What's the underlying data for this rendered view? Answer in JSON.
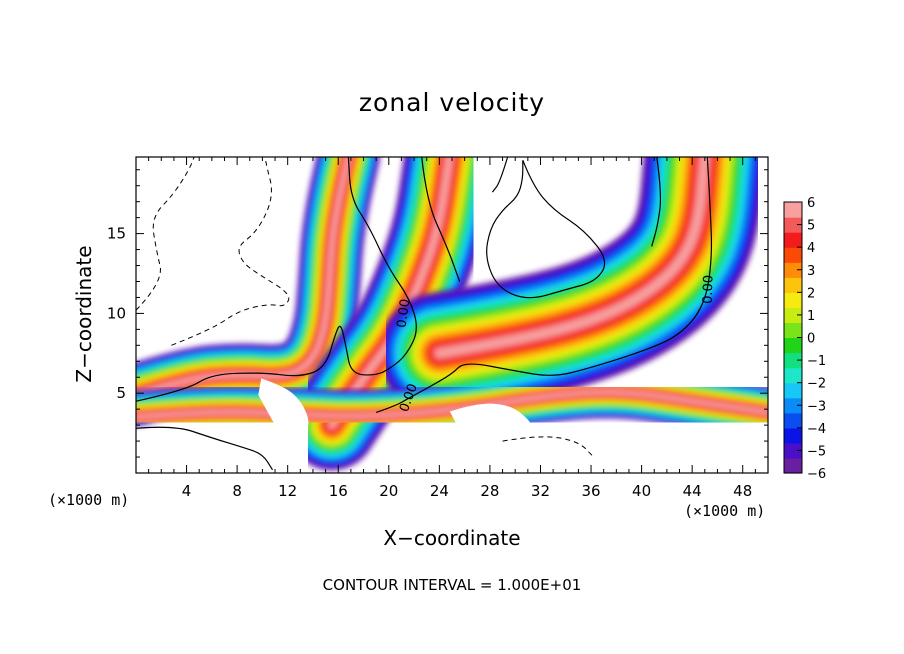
{
  "chart_data": {
    "type": "heatmap",
    "title": "zonal velocity",
    "xlabel": "X−coordinate",
    "ylabel": "Z−coordinate",
    "x_units_left": "(×1000 m)",
    "x_units_right": "(×1000 m)",
    "contour_interval_label": "CONTOUR INTERVAL = 1.000E+01",
    "xlim": [
      0,
      50
    ],
    "ylim": [
      0,
      19.8
    ],
    "x_ticks": [
      4,
      8,
      12,
      16,
      20,
      24,
      28,
      32,
      36,
      40,
      44,
      48
    ],
    "x_tick_labels": [
      "4",
      "8",
      "12",
      "16",
      "20",
      "24",
      "28",
      "32",
      "36",
      "40",
      "44",
      "48"
    ],
    "y_ticks": [
      5,
      10,
      15
    ],
    "y_tick_labels": [
      "5",
      "10",
      "15"
    ],
    "colorbar": {
      "min": -6,
      "max": 6,
      "tick_labels": [
        "6",
        "5",
        "4",
        "3",
        "2",
        "1",
        "0",
        "−1",
        "−2",
        "−3",
        "−4",
        "−5",
        "−6"
      ],
      "colors": [
        "#6a1fa0",
        "#4a10c8",
        "#0a14e6",
        "#0a4ef2",
        "#0a8cf8",
        "#16c8f8",
        "#1ee6c8",
        "#10e080",
        "#20d418",
        "#7ae41a",
        "#c8ec12",
        "#f6ea10",
        "#fcc40c",
        "#fc8c0a",
        "#fb4a08",
        "#f21c1c",
        "#f45a5a",
        "#f8a0a0"
      ]
    },
    "contour_labels": [
      {
        "text": "0.00",
        "x": 21.2,
        "z": 10.0,
        "angle": -82
      },
      {
        "text": "0.00",
        "x": 21.6,
        "z": 4.7,
        "angle": -70
      },
      {
        "text": "0.00",
        "x": 45.3,
        "z": 11.5,
        "angle": -88
      }
    ],
    "bands": [
      {
        "name": "left-jet",
        "points": [
          [
            0,
            4.9
          ],
          [
            4,
            5.9
          ],
          [
            8,
            6.2
          ],
          [
            12,
            6.0
          ],
          [
            14,
            7.0
          ],
          [
            15,
            9.2
          ],
          [
            15.3,
            12.0
          ],
          [
            15.5,
            14.5
          ],
          [
            16.0,
            17.0
          ],
          [
            16.8,
            19.8
          ]
        ],
        "width": 4.8
      },
      {
        "name": "center-jet",
        "points": [
          [
            15.5,
            3.0
          ],
          [
            18,
            6.0
          ],
          [
            20.5,
            8.5
          ],
          [
            22.5,
            12.0
          ],
          [
            24,
            15.5
          ],
          [
            24.8,
            19.8
          ]
        ],
        "width": 7.0
      },
      {
        "name": "right-jet",
        "points": [
          [
            24,
            7.5
          ],
          [
            30,
            8.3
          ],
          [
            36,
            9.5
          ],
          [
            40,
            11.0
          ],
          [
            43.0,
            13.0
          ],
          [
            44.5,
            15.5
          ],
          [
            45.0,
            19.8
          ]
        ],
        "width": 9.5
      },
      {
        "name": "low-layer",
        "points": [
          [
            0,
            3.5
          ],
          [
            6,
            3.9
          ],
          [
            12,
            3.7
          ],
          [
            18,
            3.5
          ],
          [
            26,
            4.0
          ],
          [
            32,
            4.8
          ],
          [
            38,
            5.2
          ],
          [
            44,
            4.5
          ],
          [
            50,
            3.8
          ]
        ],
        "width": 4.0
      }
    ],
    "contour_lines": [
      {
        "style": "solid",
        "points": [
          [
            0,
            4.5
          ],
          [
            4,
            5.2
          ],
          [
            6,
            6.2
          ],
          [
            10,
            6.3
          ],
          [
            13,
            6.0
          ],
          [
            15,
            6.6
          ],
          [
            15.8,
            8.8
          ],
          [
            16.2,
            9.4
          ],
          [
            16.6,
            8.0
          ],
          [
            17.0,
            6.2
          ],
          [
            19,
            6.1
          ],
          [
            20.2,
            6.6
          ],
          [
            21.4,
            7.4
          ],
          [
            22.4,
            9.0
          ],
          [
            21.6,
            11.0
          ],
          [
            20.0,
            12.8
          ],
          [
            18.4,
            15.5
          ],
          [
            17.0,
            17.2
          ],
          [
            16.8,
            19.8
          ]
        ]
      },
      {
        "style": "solid",
        "points": [
          [
            19.0,
            3.8
          ],
          [
            20.5,
            4.2
          ],
          [
            21.6,
            4.7
          ],
          [
            23.0,
            5.3
          ],
          [
            25.0,
            6.2
          ],
          [
            26.0,
            7.0
          ],
          [
            30,
            6.4
          ],
          [
            33,
            6.0
          ],
          [
            36,
            6.6
          ],
          [
            40,
            7.6
          ],
          [
            43,
            8.6
          ],
          [
            45.0,
            10.5
          ],
          [
            45.6,
            13.5
          ],
          [
            45.4,
            17.0
          ],
          [
            45.2,
            19.8
          ]
        ]
      },
      {
        "style": "solid",
        "points": [
          [
            41.2,
            19.8
          ],
          [
            41.6,
            17.5
          ],
          [
            41.3,
            15.6
          ],
          [
            40.8,
            14.2
          ]
        ]
      },
      {
        "style": "solid",
        "points": [
          [
            22.6,
            19.8
          ],
          [
            23.0,
            17.0
          ],
          [
            24.6,
            14.2
          ],
          [
            25.6,
            12.0
          ]
        ]
      },
      {
        "style": "solid",
        "points": [
          [
            29.4,
            19.8
          ],
          [
            28.8,
            18.2
          ],
          [
            28.2,
            17.6
          ]
        ]
      },
      {
        "style": "solid",
        "points": [
          [
            30.6,
            19.6
          ],
          [
            31.4,
            18.0
          ],
          [
            33.0,
            16.5
          ],
          [
            35.5,
            15.2
          ],
          [
            37.4,
            13.3
          ],
          [
            36.4,
            12.0
          ],
          [
            34.0,
            11.5
          ],
          [
            31.0,
            10.8
          ],
          [
            28.6,
            11.6
          ],
          [
            27.6,
            13.5
          ],
          [
            28.0,
            15.3
          ],
          [
            29.0,
            16.5
          ],
          [
            30.2,
            17.3
          ],
          [
            30.6,
            18.4
          ],
          [
            30.6,
            19.6
          ]
        ]
      },
      {
        "style": "solid",
        "points": [
          [
            0,
            2.8
          ],
          [
            3,
            3.0
          ],
          [
            6,
            2.2
          ],
          [
            8.5,
            1.6
          ],
          [
            10,
            1.2
          ],
          [
            10.8,
            0.2
          ]
        ]
      }
    ],
    "dashed_lines": [
      {
        "points": [
          [
            0,
            10.2
          ],
          [
            2.2,
            12.0
          ],
          [
            1.6,
            14.0
          ],
          [
            1.2,
            16.0
          ],
          [
            3.0,
            17.5
          ],
          [
            4.2,
            19.0
          ],
          [
            4.6,
            19.8
          ]
        ]
      },
      {
        "points": [
          [
            2.8,
            8.0
          ],
          [
            6.0,
            9.0
          ],
          [
            8.2,
            10.2
          ],
          [
            10.6,
            10.6
          ],
          [
            11.8,
            10.4
          ],
          [
            12.3,
            11.2
          ],
          [
            9.6,
            12.5
          ],
          [
            8.4,
            13.2
          ],
          [
            8.0,
            14.2
          ],
          [
            9.4,
            15.0
          ],
          [
            10.5,
            16.5
          ],
          [
            10.8,
            17.8
          ],
          [
            10.4,
            19.0
          ],
          [
            10.2,
            19.8
          ]
        ]
      },
      {
        "points": [
          [
            29.0,
            2.0
          ],
          [
            32.0,
            2.4
          ],
          [
            35.0,
            2.0
          ],
          [
            36.2,
            1.0
          ]
        ]
      }
    ],
    "holes": [
      {
        "points": [
          [
            10.0,
            5.8
          ],
          [
            11.8,
            5.3
          ],
          [
            13.0,
            4.4
          ],
          [
            13.6,
            3.3
          ],
          [
            13.4,
            2.6
          ],
          [
            12.3,
            2.2
          ],
          [
            11.2,
            2.9
          ],
          [
            10.5,
            3.9
          ],
          [
            9.8,
            4.9
          ]
        ]
      },
      {
        "points": [
          [
            25.0,
            3.8
          ],
          [
            27.0,
            4.3
          ],
          [
            29.5,
            4.2
          ],
          [
            31.0,
            3.3
          ],
          [
            31.6,
            2.4
          ],
          [
            30.0,
            2.1
          ],
          [
            27.6,
            2.4
          ],
          [
            25.6,
            2.9
          ]
        ]
      },
      {
        "points": [
          [
            37.4,
            2.3
          ],
          [
            38.6,
            2.8
          ],
          [
            40.0,
            2.6
          ],
          [
            40.6,
            2.0
          ],
          [
            39.4,
            1.7
          ],
          [
            38.0,
            1.9
          ]
        ]
      }
    ]
  }
}
